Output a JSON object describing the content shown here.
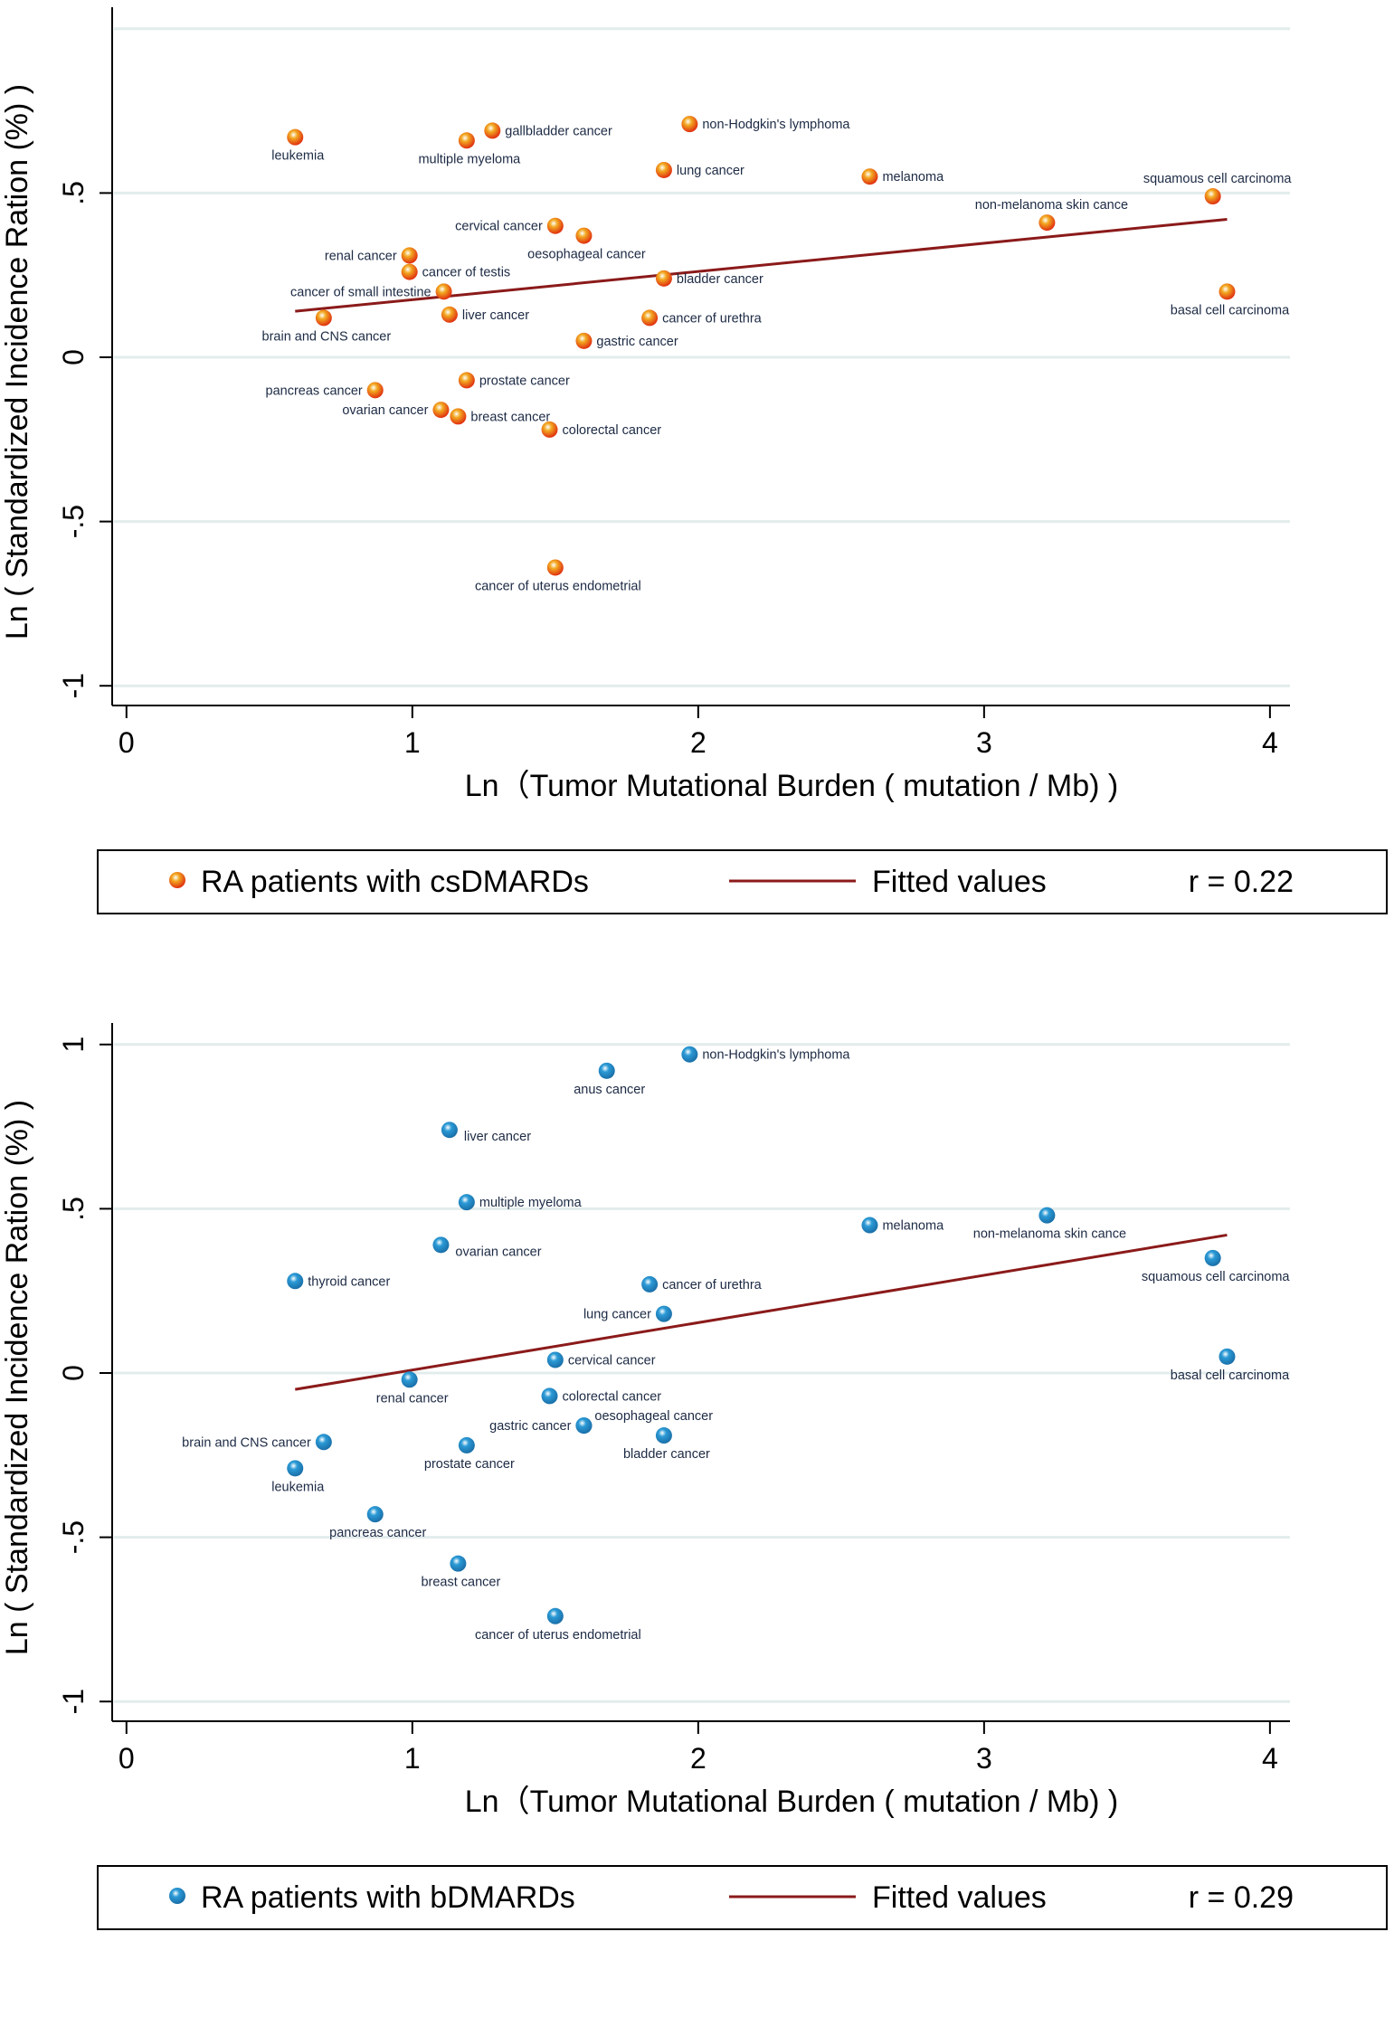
{
  "chart_data": [
    {
      "type": "scatter",
      "xlabel": "Ln（Tumor  Mutational  Burden ( mutation / Mb) )",
      "ylabel": "Ln ( Standardized  Incidence  Ration (%) )",
      "xlim": [
        -0.05,
        4.07
      ],
      "ylim": [
        -1.06,
        1.06
      ],
      "xticks": [
        0,
        1,
        2,
        3,
        4
      ],
      "xtick_labels": [
        "0",
        "1",
        "2",
        "3",
        "4"
      ],
      "yticks": [
        -1,
        -0.5,
        0,
        0.5
      ],
      "ytick_labels": [
        "-1",
        "-.5",
        "0",
        ".5"
      ],
      "gridlines": [
        -1,
        -0.5,
        0,
        0.5,
        1
      ],
      "grid": true,
      "marker_color": "#f2a820",
      "marker_edge": "#e03010",
      "fit_color": "#8b1a1a",
      "fit_line": {
        "x": [
          0.59,
          3.85
        ],
        "y": [
          0.14,
          0.42
        ]
      },
      "legend": {
        "marker_label": "RA  patients  with  csDMARDs",
        "line_label": "Fitted values",
        "stat": "r = 0.22"
      },
      "points": [
        {
          "label": "leukemia",
          "x": 0.59,
          "y": 0.67,
          "pos": "below"
        },
        {
          "label": "multiple myeloma",
          "x": 1.19,
          "y": 0.66,
          "pos": "below"
        },
        {
          "label": "gallbladder cancer",
          "x": 1.28,
          "y": 0.69,
          "pos": "right"
        },
        {
          "label": "non-Hodgkin's lymphoma",
          "x": 1.97,
          "y": 0.71,
          "pos": "right"
        },
        {
          "label": "lung cancer",
          "x": 1.88,
          "y": 0.57,
          "pos": "right"
        },
        {
          "label": "melanoma",
          "x": 2.6,
          "y": 0.55,
          "pos": "right"
        },
        {
          "label": "squamous cell carcinoma",
          "x": 3.8,
          "y": 0.49,
          "pos": "above"
        },
        {
          "label": "non-melanoma skin cance",
          "x": 3.22,
          "y": 0.41,
          "pos": "above"
        },
        {
          "label": "cervical cancer",
          "x": 1.5,
          "y": 0.4,
          "pos": "left"
        },
        {
          "label": "oesophageal cancer",
          "x": 1.6,
          "y": 0.37,
          "pos": "below"
        },
        {
          "label": "renal cancer",
          "x": 0.99,
          "y": 0.31,
          "pos": "left"
        },
        {
          "label": "cancer of testis",
          "x": 0.99,
          "y": 0.26,
          "pos": "right"
        },
        {
          "label": "cancer of small intestine",
          "x": 1.11,
          "y": 0.2,
          "pos": "left"
        },
        {
          "label": "bladder cancer",
          "x": 1.88,
          "y": 0.24,
          "pos": "right"
        },
        {
          "label": "basal cell carcinoma",
          "x": 3.85,
          "y": 0.2,
          "pos": "below"
        },
        {
          "label": "liver cancer",
          "x": 1.13,
          "y": 0.13,
          "pos": "right"
        },
        {
          "label": "cancer of urethra",
          "x": 1.83,
          "y": 0.12,
          "pos": "right"
        },
        {
          "label": "brain and CNS cancer",
          "x": 0.69,
          "y": 0.12,
          "pos": "below"
        },
        {
          "label": "gastric cancer",
          "x": 1.6,
          "y": 0.05,
          "pos": "right"
        },
        {
          "label": "prostate cancer",
          "x": 1.19,
          "y": -0.07,
          "pos": "right"
        },
        {
          "label": "pancreas cancer",
          "x": 0.87,
          "y": -0.1,
          "pos": "left"
        },
        {
          "label": "ovarian cancer",
          "x": 1.1,
          "y": -0.16,
          "pos": "left"
        },
        {
          "label": "breast cancer",
          "x": 1.16,
          "y": -0.18,
          "pos": "right"
        },
        {
          "label": "colorectal cancer",
          "x": 1.48,
          "y": -0.22,
          "pos": "right"
        },
        {
          "label": "cancer of uterus endometrial",
          "x": 1.5,
          "y": -0.64,
          "pos": "below"
        }
      ]
    },
    {
      "type": "scatter",
      "xlabel": "Ln（Tumor  Mutational  Burden ( mutation / Mb) )",
      "ylabel": "Ln ( Standardized  Incidence  Ration (%) )",
      "xlim": [
        -0.05,
        4.07
      ],
      "ylim": [
        -1.06,
        1.06
      ],
      "xticks": [
        0,
        1,
        2,
        3,
        4
      ],
      "xtick_labels": [
        "0",
        "1",
        "2",
        "3",
        "4"
      ],
      "yticks": [
        -1,
        -0.5,
        0,
        0.5,
        1
      ],
      "ytick_labels": [
        "-1",
        "-.5",
        "0",
        ".5",
        "1"
      ],
      "gridlines": [
        -1,
        -0.5,
        0,
        0.5,
        1
      ],
      "grid": true,
      "marker_color": "#2b9ad6",
      "marker_edge": "#1a6fa8",
      "fit_color": "#8b1a1a",
      "fit_line": {
        "x": [
          0.59,
          3.85
        ],
        "y": [
          -0.05,
          0.42
        ]
      },
      "legend": {
        "marker_label": "RA  patients  with  bDMARDs",
        "line_label": "Fitted values",
        "stat": "r = 0.29"
      },
      "points": [
        {
          "label": "non-Hodgkin's lymphoma",
          "x": 1.97,
          "y": 0.97,
          "pos": "right"
        },
        {
          "label": "anus cancer",
          "x": 1.68,
          "y": 0.92,
          "pos": "below"
        },
        {
          "label": "liver cancer",
          "x": 1.13,
          "y": 0.74,
          "pos": "belowright"
        },
        {
          "label": "multiple myeloma",
          "x": 1.19,
          "y": 0.52,
          "pos": "right"
        },
        {
          "label": "melanoma",
          "x": 2.6,
          "y": 0.45,
          "pos": "right"
        },
        {
          "label": "non-melanoma skin cance",
          "x": 3.22,
          "y": 0.48,
          "pos": "below"
        },
        {
          "label": "ovarian cancer",
          "x": 1.1,
          "y": 0.39,
          "pos": "belowright"
        },
        {
          "label": "squamous cell carcinoma",
          "x": 3.8,
          "y": 0.35,
          "pos": "below"
        },
        {
          "label": "thyroid cancer",
          "x": 0.59,
          "y": 0.28,
          "pos": "right"
        },
        {
          "label": "cancer of urethra",
          "x": 1.83,
          "y": 0.27,
          "pos": "right"
        },
        {
          "label": "lung cancer",
          "x": 1.88,
          "y": 0.18,
          "pos": "left"
        },
        {
          "label": "cervical cancer",
          "x": 1.5,
          "y": 0.04,
          "pos": "right"
        },
        {
          "label": "basal cell carcinoma",
          "x": 3.85,
          "y": 0.05,
          "pos": "below"
        },
        {
          "label": "renal cancer",
          "x": 0.99,
          "y": -0.02,
          "pos": "below"
        },
        {
          "label": "colorectal cancer",
          "x": 1.48,
          "y": -0.07,
          "pos": "right"
        },
        {
          "label": "oesophageal cancer",
          "x": 1.6,
          "y": -0.16,
          "pos": "aboveright"
        },
        {
          "label": "gastric cancer",
          "x": 1.6,
          "y": -0.16,
          "pos": "left"
        },
        {
          "label": "bladder cancer",
          "x": 1.88,
          "y": -0.19,
          "pos": "below"
        },
        {
          "label": "brain and CNS cancer",
          "x": 0.69,
          "y": -0.21,
          "pos": "left"
        },
        {
          "label": "prostate cancer",
          "x": 1.19,
          "y": -0.22,
          "pos": "below"
        },
        {
          "label": "leukemia",
          "x": 0.59,
          "y": -0.29,
          "pos": "below"
        },
        {
          "label": "pancreas cancer",
          "x": 0.87,
          "y": -0.43,
          "pos": "below"
        },
        {
          "label": "breast cancer",
          "x": 1.16,
          "y": -0.58,
          "pos": "below"
        },
        {
          "label": "cancer of uterus endometrial",
          "x": 1.5,
          "y": -0.74,
          "pos": "below"
        }
      ]
    }
  ]
}
